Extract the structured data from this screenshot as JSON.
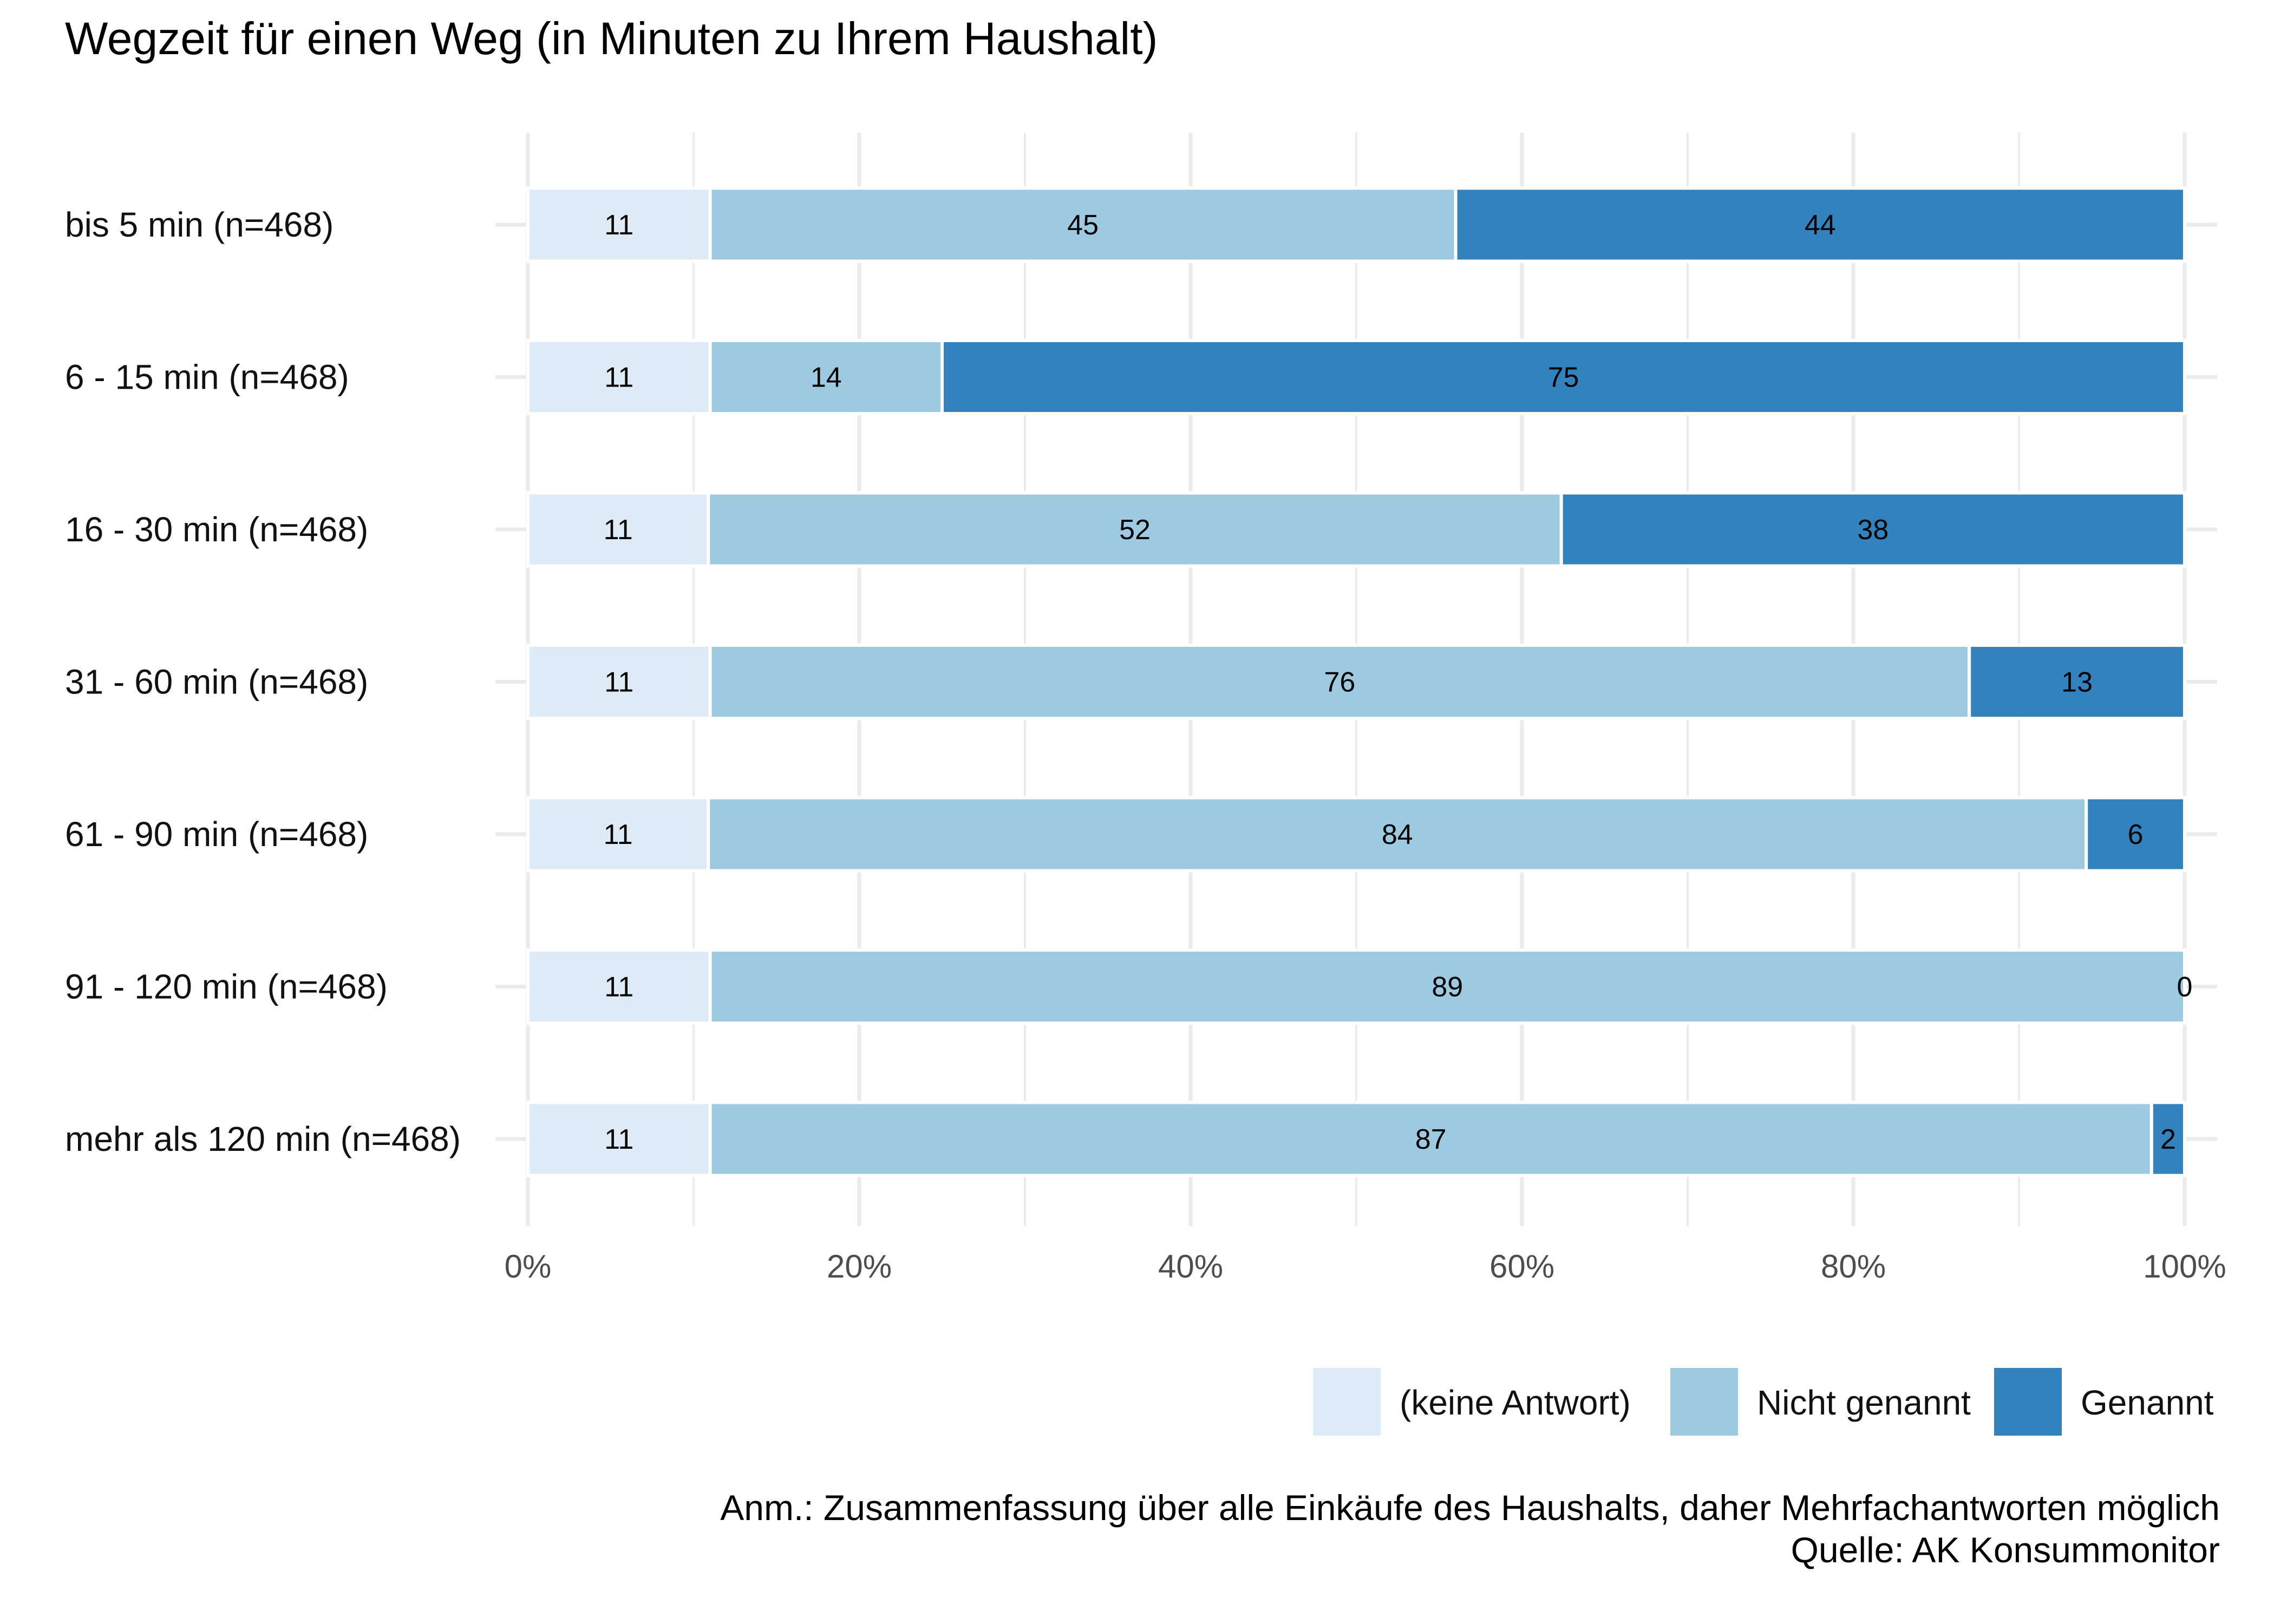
{
  "chart_data": {
    "type": "bar",
    "orientation": "horizontal",
    "stacked": true,
    "percent": true,
    "title": "Wegzeit für einen Weg (in Minuten zu Ihrem Haushalt)",
    "categories": [
      "bis 5 min (n=468)",
      "6 - 15 min (n=468)",
      "16 - 30 min (n=468)",
      "31 - 60 min (n=468)",
      "61 - 90 min (n=468)",
      "91 - 120 min (n=468)",
      "mehr als 120 min (n=468)"
    ],
    "series": [
      {
        "name": "(keine Antwort)",
        "color": "#deebf7",
        "values": [
          11,
          11,
          11,
          11,
          11,
          11,
          11
        ]
      },
      {
        "name": "Nicht genannt",
        "color": "#9ecae1",
        "values": [
          45,
          14,
          52,
          76,
          84,
          89,
          87
        ]
      },
      {
        "name": "Genannt",
        "color": "#3182bd",
        "values": [
          44,
          75,
          38,
          13,
          6,
          0,
          2
        ]
      }
    ],
    "x_ticks": [
      "0%",
      "20%",
      "40%",
      "60%",
      "80%",
      "100%"
    ],
    "xlim": [
      0,
      100
    ],
    "grid": true,
    "legend_position": "bottom-right",
    "caption_lines": [
      "Anm.: Zusammenfassung über alle Einkäufe des Haushalts, daher Mehrfachantworten möglich",
      "Quelle: AK Konsummonitor"
    ]
  }
}
